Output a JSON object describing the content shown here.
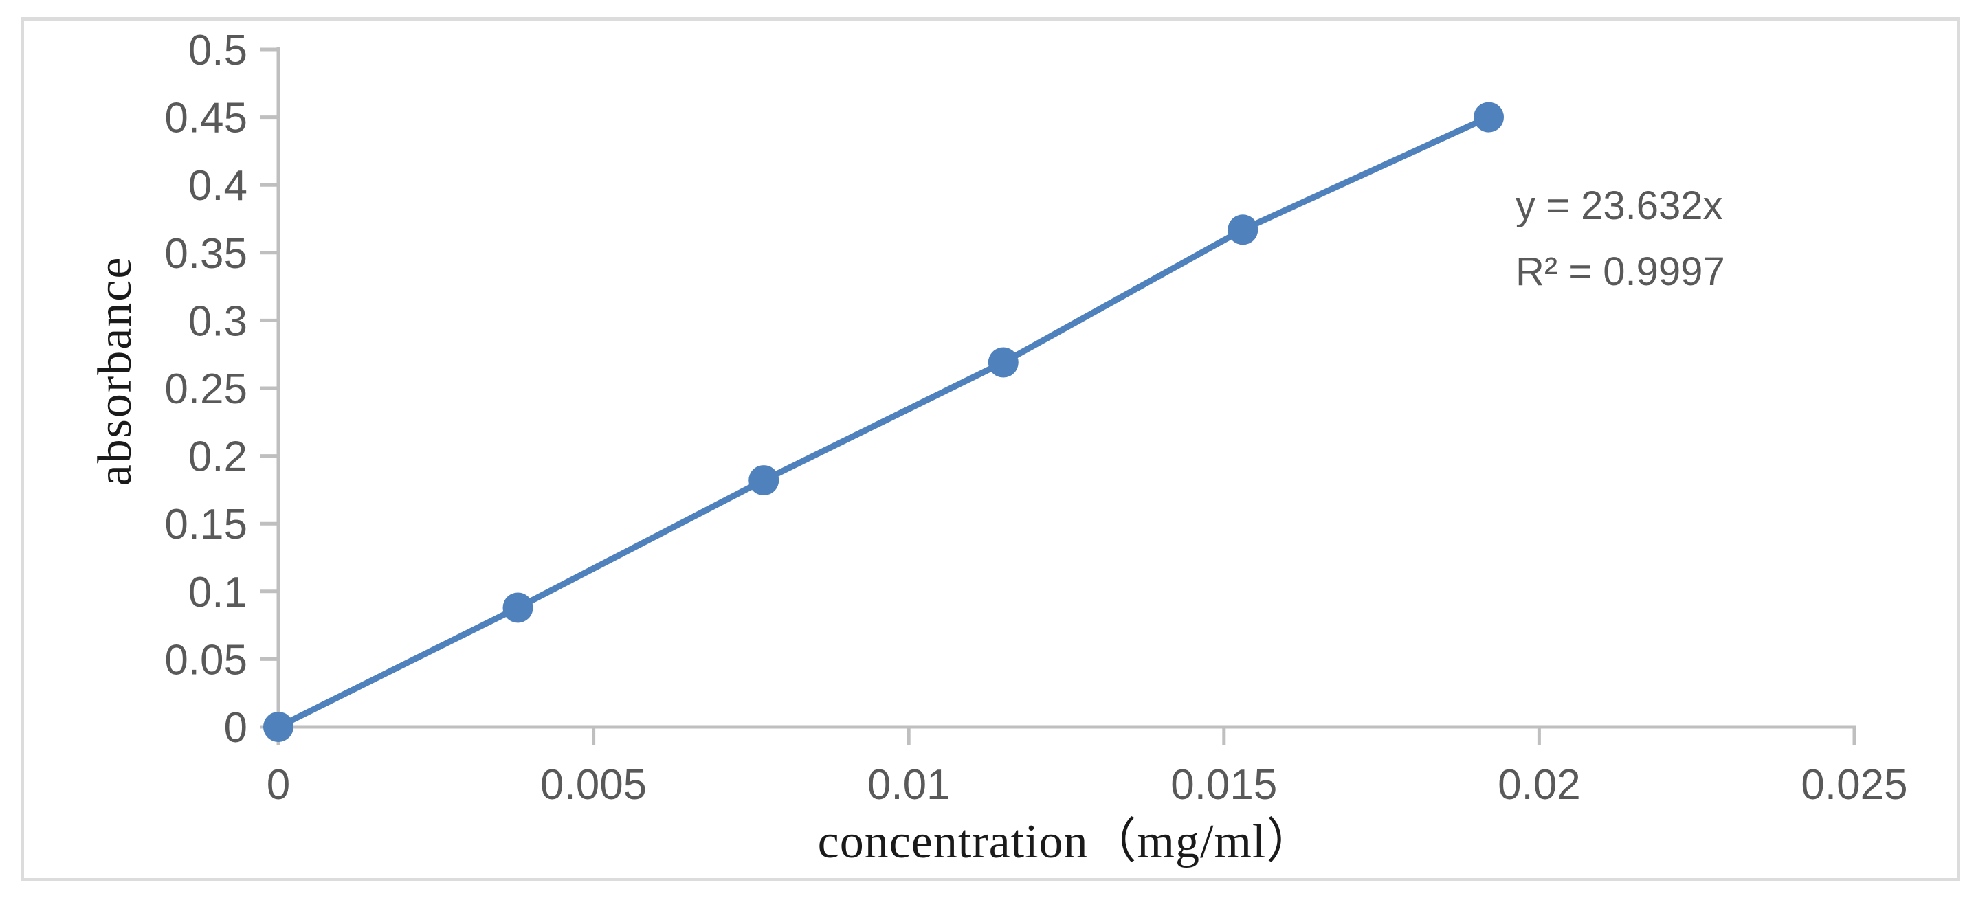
{
  "figure": {
    "background_color": "#ffffff",
    "frame_border_color": "#dcdcdc"
  },
  "chart_data": {
    "type": "scatter",
    "title": "",
    "xlabel": "concentration（mg/ml）",
    "ylabel": "absorbance",
    "x": [
      0,
      0.0038,
      0.0077,
      0.0115,
      0.0153,
      0.0192
    ],
    "y": [
      0,
      0.088,
      0.182,
      0.269,
      0.367,
      0.45
    ],
    "marker": "circle",
    "line_between_points": true,
    "trendline_equation": "y = 23.632x",
    "r_squared": "R² = 0.9997",
    "xlim": [
      0,
      0.025
    ],
    "ylim": [
      0,
      0.5
    ],
    "x_tick_values": [
      0,
      0.005,
      0.01,
      0.015,
      0.02,
      0.025
    ],
    "x_tick_labels": [
      "0",
      "0.005",
      "0.01",
      "0.015",
      "0.02",
      "0.025"
    ],
    "y_tick_values": [
      0,
      0.05,
      0.1,
      0.15,
      0.2,
      0.25,
      0.3,
      0.35,
      0.4,
      0.45,
      0.5
    ],
    "y_tick_labels": [
      "0",
      "0.05",
      "0.1",
      "0.15",
      "0.2",
      "0.25",
      "0.3",
      "0.35",
      "0.4",
      "0.45",
      "0.5"
    ],
    "grid": false,
    "legend": "none",
    "colors": {
      "series": "#4f81bd",
      "axis": "#bfbfbf",
      "tick_label": "#595959",
      "annotation": "#595959",
      "axis_title": "#1a1a1a"
    }
  }
}
